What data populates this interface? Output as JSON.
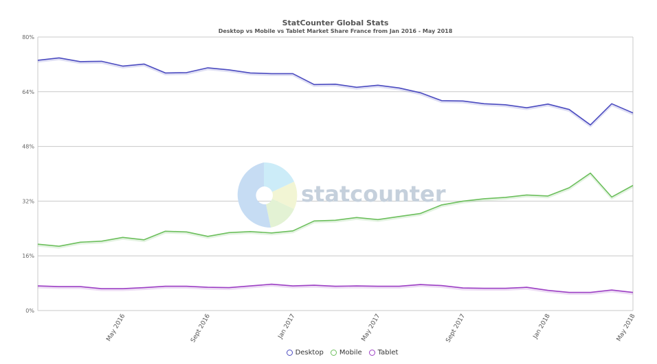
{
  "chart_data": {
    "type": "line",
    "title": "StatCounter Global Stats",
    "subtitle": "Desktop vs Mobile vs Tablet Market Share France from Jan 2016 - May 2018",
    "ylim": [
      0,
      80
    ],
    "yticks": [
      0,
      16,
      32,
      48,
      64,
      80
    ],
    "ytick_labels": [
      "0%",
      "16%",
      "32%",
      "48%",
      "64%",
      "80%"
    ],
    "x": [
      "Jan 2016",
      "Feb 2016",
      "Mar 2016",
      "Apr 2016",
      "May 2016",
      "Jun 2016",
      "Jul 2016",
      "Aug 2016",
      "Sept 2016",
      "Oct 2016",
      "Nov 2016",
      "Dec 2016",
      "Jan 2017",
      "Feb 2017",
      "Mar 2017",
      "Apr 2017",
      "May 2017",
      "Jun 2017",
      "Jul 2017",
      "Aug 2017",
      "Sept 2017",
      "Oct 2017",
      "Nov 2017",
      "Dec 2017",
      "Jan 2018",
      "Feb 2018",
      "Mar 2018",
      "Apr 2018",
      "May 2018"
    ],
    "xtick_labels": [
      {
        "index": 4,
        "label": "May 2016"
      },
      {
        "index": 8,
        "label": "Sept 2016"
      },
      {
        "index": 12,
        "label": "Jan 2017"
      },
      {
        "index": 16,
        "label": "May 2017"
      },
      {
        "index": 20,
        "label": "Sept 2017"
      },
      {
        "index": 24,
        "label": "Jan 2018"
      },
      {
        "index": 28,
        "label": "May 2018"
      }
    ],
    "series": [
      {
        "name": "Desktop",
        "color": "#4b4bc0",
        "values": [
          73.2,
          73.9,
          72.8,
          72.9,
          71.5,
          72.1,
          69.5,
          69.6,
          71.0,
          70.4,
          69.5,
          69.3,
          69.3,
          66.1,
          66.2,
          65.3,
          65.9,
          65.1,
          63.7,
          61.4,
          61.3,
          60.5,
          60.2,
          59.3,
          60.4,
          58.8,
          54.3,
          60.5,
          57.8
        ]
      },
      {
        "name": "Mobile",
        "color": "#6cbf5c",
        "values": [
          19.4,
          18.8,
          20.0,
          20.3,
          21.4,
          20.7,
          23.2,
          23.0,
          21.7,
          22.8,
          23.1,
          22.7,
          23.3,
          26.2,
          26.4,
          27.2,
          26.6,
          27.5,
          28.4,
          30.9,
          32.0,
          32.7,
          33.1,
          33.8,
          33.5,
          35.9,
          40.2,
          33.2,
          36.6
        ]
      },
      {
        "name": "Tablet",
        "color": "#9c3fc4",
        "values": [
          7.2,
          7.0,
          7.0,
          6.4,
          6.4,
          6.7,
          7.1,
          7.1,
          6.8,
          6.7,
          7.2,
          7.7,
          7.2,
          7.4,
          7.1,
          7.2,
          7.1,
          7.1,
          7.6,
          7.3,
          6.6,
          6.5,
          6.5,
          6.8,
          5.9,
          5.3,
          5.3,
          6.0,
          5.3
        ]
      }
    ],
    "grid": true,
    "legend_position": "bottom"
  },
  "watermark": {
    "text": "statcounter"
  }
}
